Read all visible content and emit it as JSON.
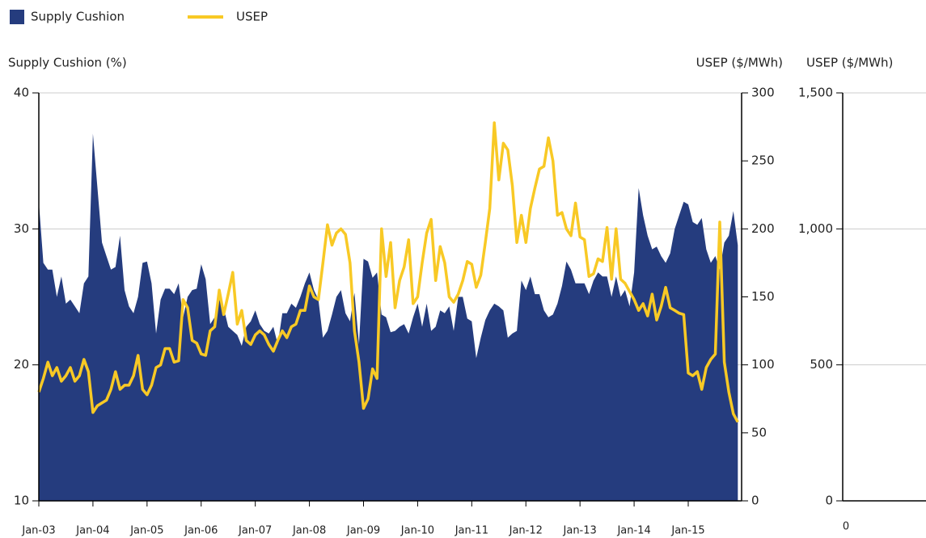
{
  "chart_data": [
    {
      "type": "area_line",
      "legend": "top-left",
      "grid": true,
      "y_label": "Supply Cushion (%)",
      "y2_label": "USEP ($/MWh)",
      "categories": [
        "Jan-03",
        null,
        null,
        null,
        null,
        null,
        null,
        null,
        null,
        null,
        null,
        null,
        "Jan-04",
        null,
        null,
        null,
        null,
        null,
        null,
        null,
        null,
        null,
        null,
        null,
        "Jan-05",
        null,
        null,
        null,
        null,
        null,
        null,
        null,
        null,
        null,
        null,
        null,
        "Jan-06",
        null,
        null,
        null,
        null,
        null,
        null,
        null,
        null,
        null,
        null,
        null,
        "Jan-07",
        null,
        null,
        null,
        null,
        null,
        null,
        null,
        null,
        null,
        null,
        null,
        "Jan-08",
        null,
        null,
        null,
        null,
        null,
        null,
        null,
        null,
        null,
        null,
        null,
        "Jan-09",
        null,
        null,
        null,
        null,
        null,
        null,
        null,
        null,
        null,
        null,
        null,
        "Jan-10",
        null,
        null,
        null,
        null,
        null,
        null,
        null,
        null,
        null,
        null,
        null,
        "Jan-11",
        null,
        null,
        null,
        null,
        null,
        null,
        null,
        null,
        null,
        null,
        null,
        "Jan-12",
        null,
        null,
        null,
        null,
        null,
        null,
        null,
        null,
        null,
        null,
        null,
        "Jan-13",
        null,
        null,
        null,
        null,
        null,
        null,
        null,
        null,
        null,
        null,
        null,
        "Jan-14",
        null,
        null,
        null,
        null,
        null,
        null,
        null,
        null,
        null,
        null,
        null,
        "Jan-15",
        null,
        null,
        null,
        null,
        null,
        null,
        null,
        null,
        null,
        null,
        null
      ],
      "ylim": [
        10,
        40
      ],
      "yticks": [
        10,
        20,
        30,
        40
      ],
      "y2lim": [
        0,
        300
      ],
      "y2ticks": [
        0,
        50,
        100,
        150,
        200,
        250,
        300
      ],
      "series": [
        {
          "name": "Supply Cushion",
          "color": "#253c7e",
          "kind": "area",
          "values": [
            32,
            27.5,
            27,
            27,
            25,
            26.5,
            24.5,
            24.8,
            24.3,
            23.8,
            26,
            26.5,
            37,
            33,
            29,
            28,
            27,
            27.2,
            29.5,
            25.5,
            24.3,
            23.8,
            25,
            27.5,
            27.6,
            26,
            22.3,
            24.8,
            25.6,
            25.6,
            25.2,
            26,
            23.5,
            25,
            25.5,
            25.6,
            27.4,
            26.3,
            23,
            23.5,
            24.8,
            24.2,
            22.8,
            22.5,
            22.2,
            21.4,
            22.8,
            23.2,
            24,
            23,
            22.5,
            22.3,
            22.8,
            21.5,
            23.8,
            23.8,
            24.5,
            24.2,
            25,
            26,
            26.8,
            25.5,
            24.8,
            22,
            22.5,
            23.7,
            25,
            25.5,
            23.8,
            23.2,
            25.3,
            21.5,
            27.8,
            27.6,
            26.4,
            26.8,
            23.7,
            23.5,
            22.4,
            22.5,
            22.8,
            23,
            22.3,
            23.5,
            24.5,
            22.8,
            24.5,
            22.5,
            22.8,
            24,
            23.8,
            24.3,
            22.5,
            25,
            25,
            23.4,
            23.2,
            20.5,
            22,
            23.3,
            24,
            24.5,
            24.3,
            24,
            22,
            22.3,
            22.5,
            26.2,
            25.5,
            26.5,
            25.2,
            25.2,
            24,
            23.5,
            23.7,
            24.5,
            25.8,
            27.6,
            27,
            26,
            26,
            26,
            25.2,
            26.2,
            26.8,
            26.5,
            26.5,
            25,
            26.5,
            25,
            25.5,
            24.3,
            26.8,
            33,
            31,
            29.5,
            28.5,
            28.7,
            28,
            27.5,
            28.2,
            30,
            31,
            32,
            31.8,
            30.5,
            30.3,
            30.8,
            28.5,
            27.5,
            28,
            27,
            29,
            29.5,
            31.3,
            28.8
          ]
        },
        {
          "name": "USEP",
          "color": "#f8c925",
          "kind": "line",
          "axis": "y2",
          "values": [
            80,
            90,
            102,
            92,
            98,
            88,
            92,
            98,
            88,
            92,
            104,
            95,
            65,
            70,
            72,
            74,
            82,
            95,
            82,
            85,
            85,
            92,
            107,
            82,
            78,
            85,
            98,
            100,
            112,
            112,
            102,
            103,
            148,
            142,
            118,
            116,
            108,
            107,
            125,
            128,
            155,
            137,
            152,
            168,
            130,
            140,
            118,
            115,
            122,
            125,
            122,
            115,
            110,
            118,
            125,
            120,
            128,
            130,
            140,
            140,
            158,
            150,
            148,
            175,
            203,
            188,
            197,
            200,
            196,
            175,
            125,
            102,
            68,
            75,
            97,
            90,
            200,
            165,
            190,
            142,
            162,
            172,
            192,
            145,
            150,
            175,
            197,
            207,
            162,
            187,
            175,
            150,
            146,
            152,
            162,
            176,
            174,
            157,
            166,
            190,
            215,
            278,
            236,
            263,
            258,
            232,
            190,
            210,
            190,
            215,
            230,
            244,
            246,
            267,
            250,
            210,
            212,
            200,
            195,
            219,
            194,
            192,
            165,
            167,
            178,
            176,
            201,
            163,
            200,
            163,
            160,
            154,
            148,
            140,
            145,
            136,
            152,
            133,
            143,
            157,
            142,
            140,
            138,
            137,
            94,
            92,
            95,
            82,
            98,
            104,
            108,
            205,
            102,
            80,
            64,
            58
          ]
        }
      ]
    },
    {
      "type": "empty",
      "grid": true,
      "y_label": "USEP ($/MWh)",
      "ylim": [
        0,
        1500
      ],
      "yticks": [
        0,
        500,
        {
          "value": 1000,
          "label": "1,000"
        },
        {
          "value": 1500,
          "label": "1,500"
        }
      ],
      "xticks": [
        0
      ]
    }
  ]
}
